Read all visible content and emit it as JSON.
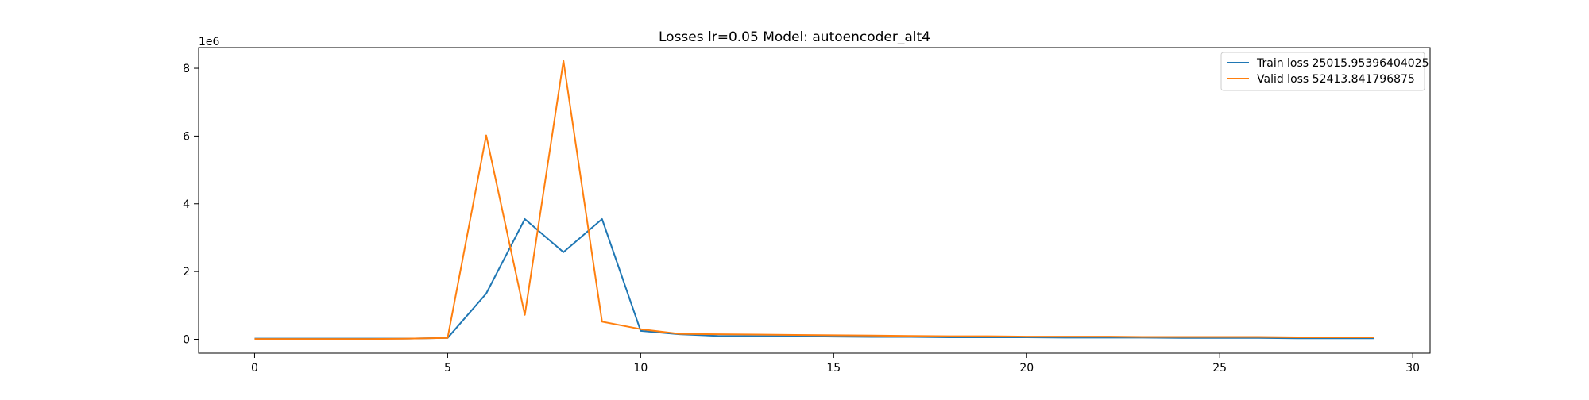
{
  "chart_data": {
    "type": "line",
    "title": "Losses lr=0.05 Model: autoencoder_alt4",
    "xlabel": "",
    "ylabel": "",
    "y_offset_label": "1e6",
    "y_scale_multiplier": 1000000,
    "xlim": [
      -1.45,
      30.45
    ],
    "ylim": [
      -0.41,
      8.61
    ],
    "x_ticks": [
      0,
      5,
      10,
      15,
      20,
      25,
      30
    ],
    "y_ticks": [
      0,
      2,
      4,
      6,
      8
    ],
    "grid": false,
    "legend_position": "upper right",
    "x": [
      0,
      1,
      2,
      3,
      4,
      5,
      6,
      7,
      8,
      9,
      10,
      11,
      12,
      13,
      14,
      15,
      16,
      17,
      18,
      19,
      20,
      21,
      22,
      23,
      24,
      25,
      26,
      27,
      28,
      29
    ],
    "series": [
      {
        "name": "Train loss 25015.95396404025",
        "color": "#1f77b4",
        "values": [
          0.02,
          0.02,
          0.02,
          0.02,
          0.02,
          0.04,
          1.35,
          3.55,
          2.57,
          3.55,
          0.25,
          0.15,
          0.1,
          0.09,
          0.09,
          0.08,
          0.07,
          0.07,
          0.06,
          0.06,
          0.06,
          0.05,
          0.05,
          0.05,
          0.04,
          0.04,
          0.04,
          0.03,
          0.03,
          0.03
        ]
      },
      {
        "name": "Valid loss 52413.841796875",
        "color": "#ff7f0e",
        "values": [
          0.01,
          0.01,
          0.01,
          0.01,
          0.02,
          0.04,
          6.02,
          0.72,
          8.22,
          0.52,
          0.3,
          0.16,
          0.15,
          0.14,
          0.13,
          0.12,
          0.11,
          0.1,
          0.09,
          0.09,
          0.08,
          0.08,
          0.08,
          0.07,
          0.07,
          0.07,
          0.07,
          0.06,
          0.06,
          0.06
        ]
      }
    ]
  }
}
